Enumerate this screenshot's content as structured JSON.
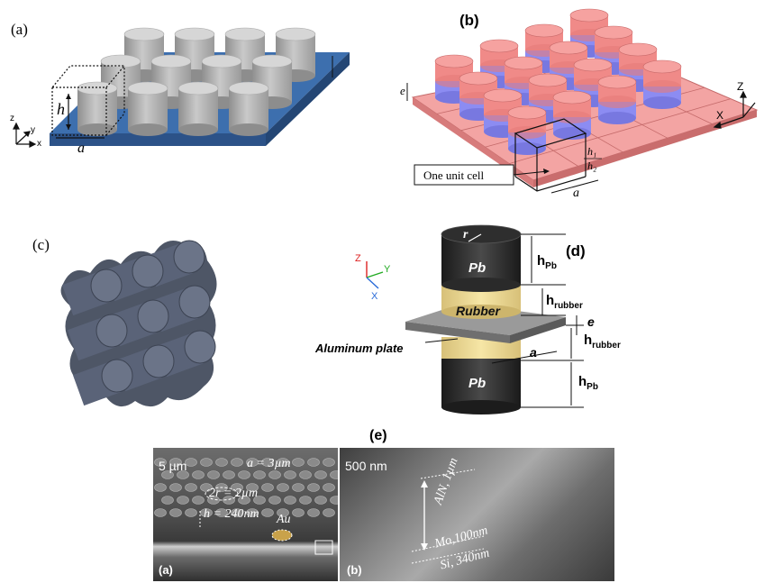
{
  "panel_a": {
    "tag": "(a)",
    "h": "h",
    "a": "a",
    "axis_z": "z",
    "axis_y": "y",
    "axis_x": "x"
  },
  "panel_b": {
    "tag": "(b)",
    "e": "e",
    "h1": "h₁",
    "h2": "h₂",
    "a": "a",
    "callout": "One unit cell",
    "axis_z": "Z",
    "axis_x": "X"
  },
  "panel_c": {
    "tag": "(c)"
  },
  "panel_d": {
    "tag": "(d)",
    "r": "r",
    "pb_top": "Pb",
    "rubber": "Rubber",
    "plate": "Aluminum plate",
    "pb_bottom": "Pb",
    "h_pb": "h",
    "h_pb_sub": "Pb",
    "h_rubber": "h",
    "h_rubber_sub": "rubber",
    "e": "e",
    "a": "a",
    "axis_z": "Z",
    "axis_y": "Y",
    "axis_x": "X"
  },
  "panel_e": {
    "tag": "(e)",
    "left": {
      "scale": "5 µm",
      "a_label": "a = 3µm",
      "r_label": "2r = 2µm",
      "h_label": "h = 240nm",
      "au_label": "Au",
      "sub_tag": "(a)"
    },
    "right": {
      "scale": "500 nm",
      "aln": "AlN, 1µm",
      "mo": "Mo,100nm",
      "si": "Si, 340nm",
      "sub_tag": "(b)"
    }
  },
  "colors": {
    "plate_blue": "#3d6fae",
    "pillar_grey": "#b9b9b9",
    "pink": "#f08a88",
    "blue_violet": "#8c8cf2",
    "dark_pb": "#2b2b2b",
    "rubber_yellow": "#f0dd93",
    "al_plate": "#8e8e8e",
    "lattice": "#5a6478",
    "au_gold": "#c9a24a"
  }
}
